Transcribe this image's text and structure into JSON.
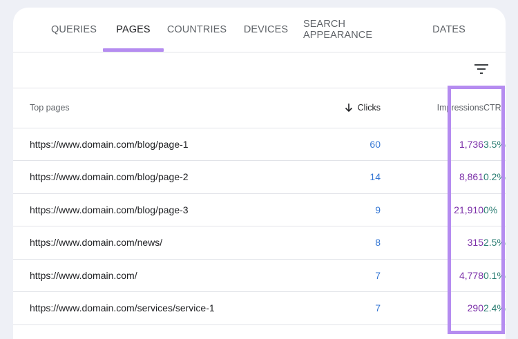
{
  "tabs": [
    {
      "label": "QUERIES"
    },
    {
      "label": "PAGES"
    },
    {
      "label": "COUNTRIES"
    },
    {
      "label": "DEVICES"
    },
    {
      "label": "SEARCH APPEARANCE"
    },
    {
      "label": "DATES"
    }
  ],
  "active_tab": "PAGES",
  "table": {
    "headers": {
      "page": "Top pages",
      "clicks": "Clicks",
      "impressions": "Impressions",
      "ctr": "CTR"
    },
    "sort": "clicks-descending",
    "rows": [
      {
        "page": "https://www.domain.com/blog/page-1",
        "clicks": "60",
        "impressions": "1,736",
        "ctr": "3.5%"
      },
      {
        "page": "https://www.domain.com/blog/page-2",
        "clicks": "14",
        "impressions": "8,861",
        "ctr": "0.2%"
      },
      {
        "page": "https://www.domain.com/blog/page-3",
        "clicks": "9",
        "impressions": "21,910",
        "ctr": "0%"
      },
      {
        "page": "https://www.domain.com/news/",
        "clicks": "8",
        "impressions": "315",
        "ctr": "2.5%"
      },
      {
        "page": "https://www.domain.com/",
        "clicks": "7",
        "impressions": "4,778",
        "ctr": "0.1%"
      },
      {
        "page": "https://www.domain.com/services/service-1",
        "clicks": "7",
        "impressions": "290",
        "ctr": "2.4%"
      }
    ]
  },
  "colors": {
    "accent": "#b58cf0",
    "clicks": "#3577d4",
    "impressions": "#7b2fa8",
    "ctr": "#2a7d72"
  },
  "icons": {
    "filter": "filter-icon",
    "sort": "arrow-down-icon"
  }
}
